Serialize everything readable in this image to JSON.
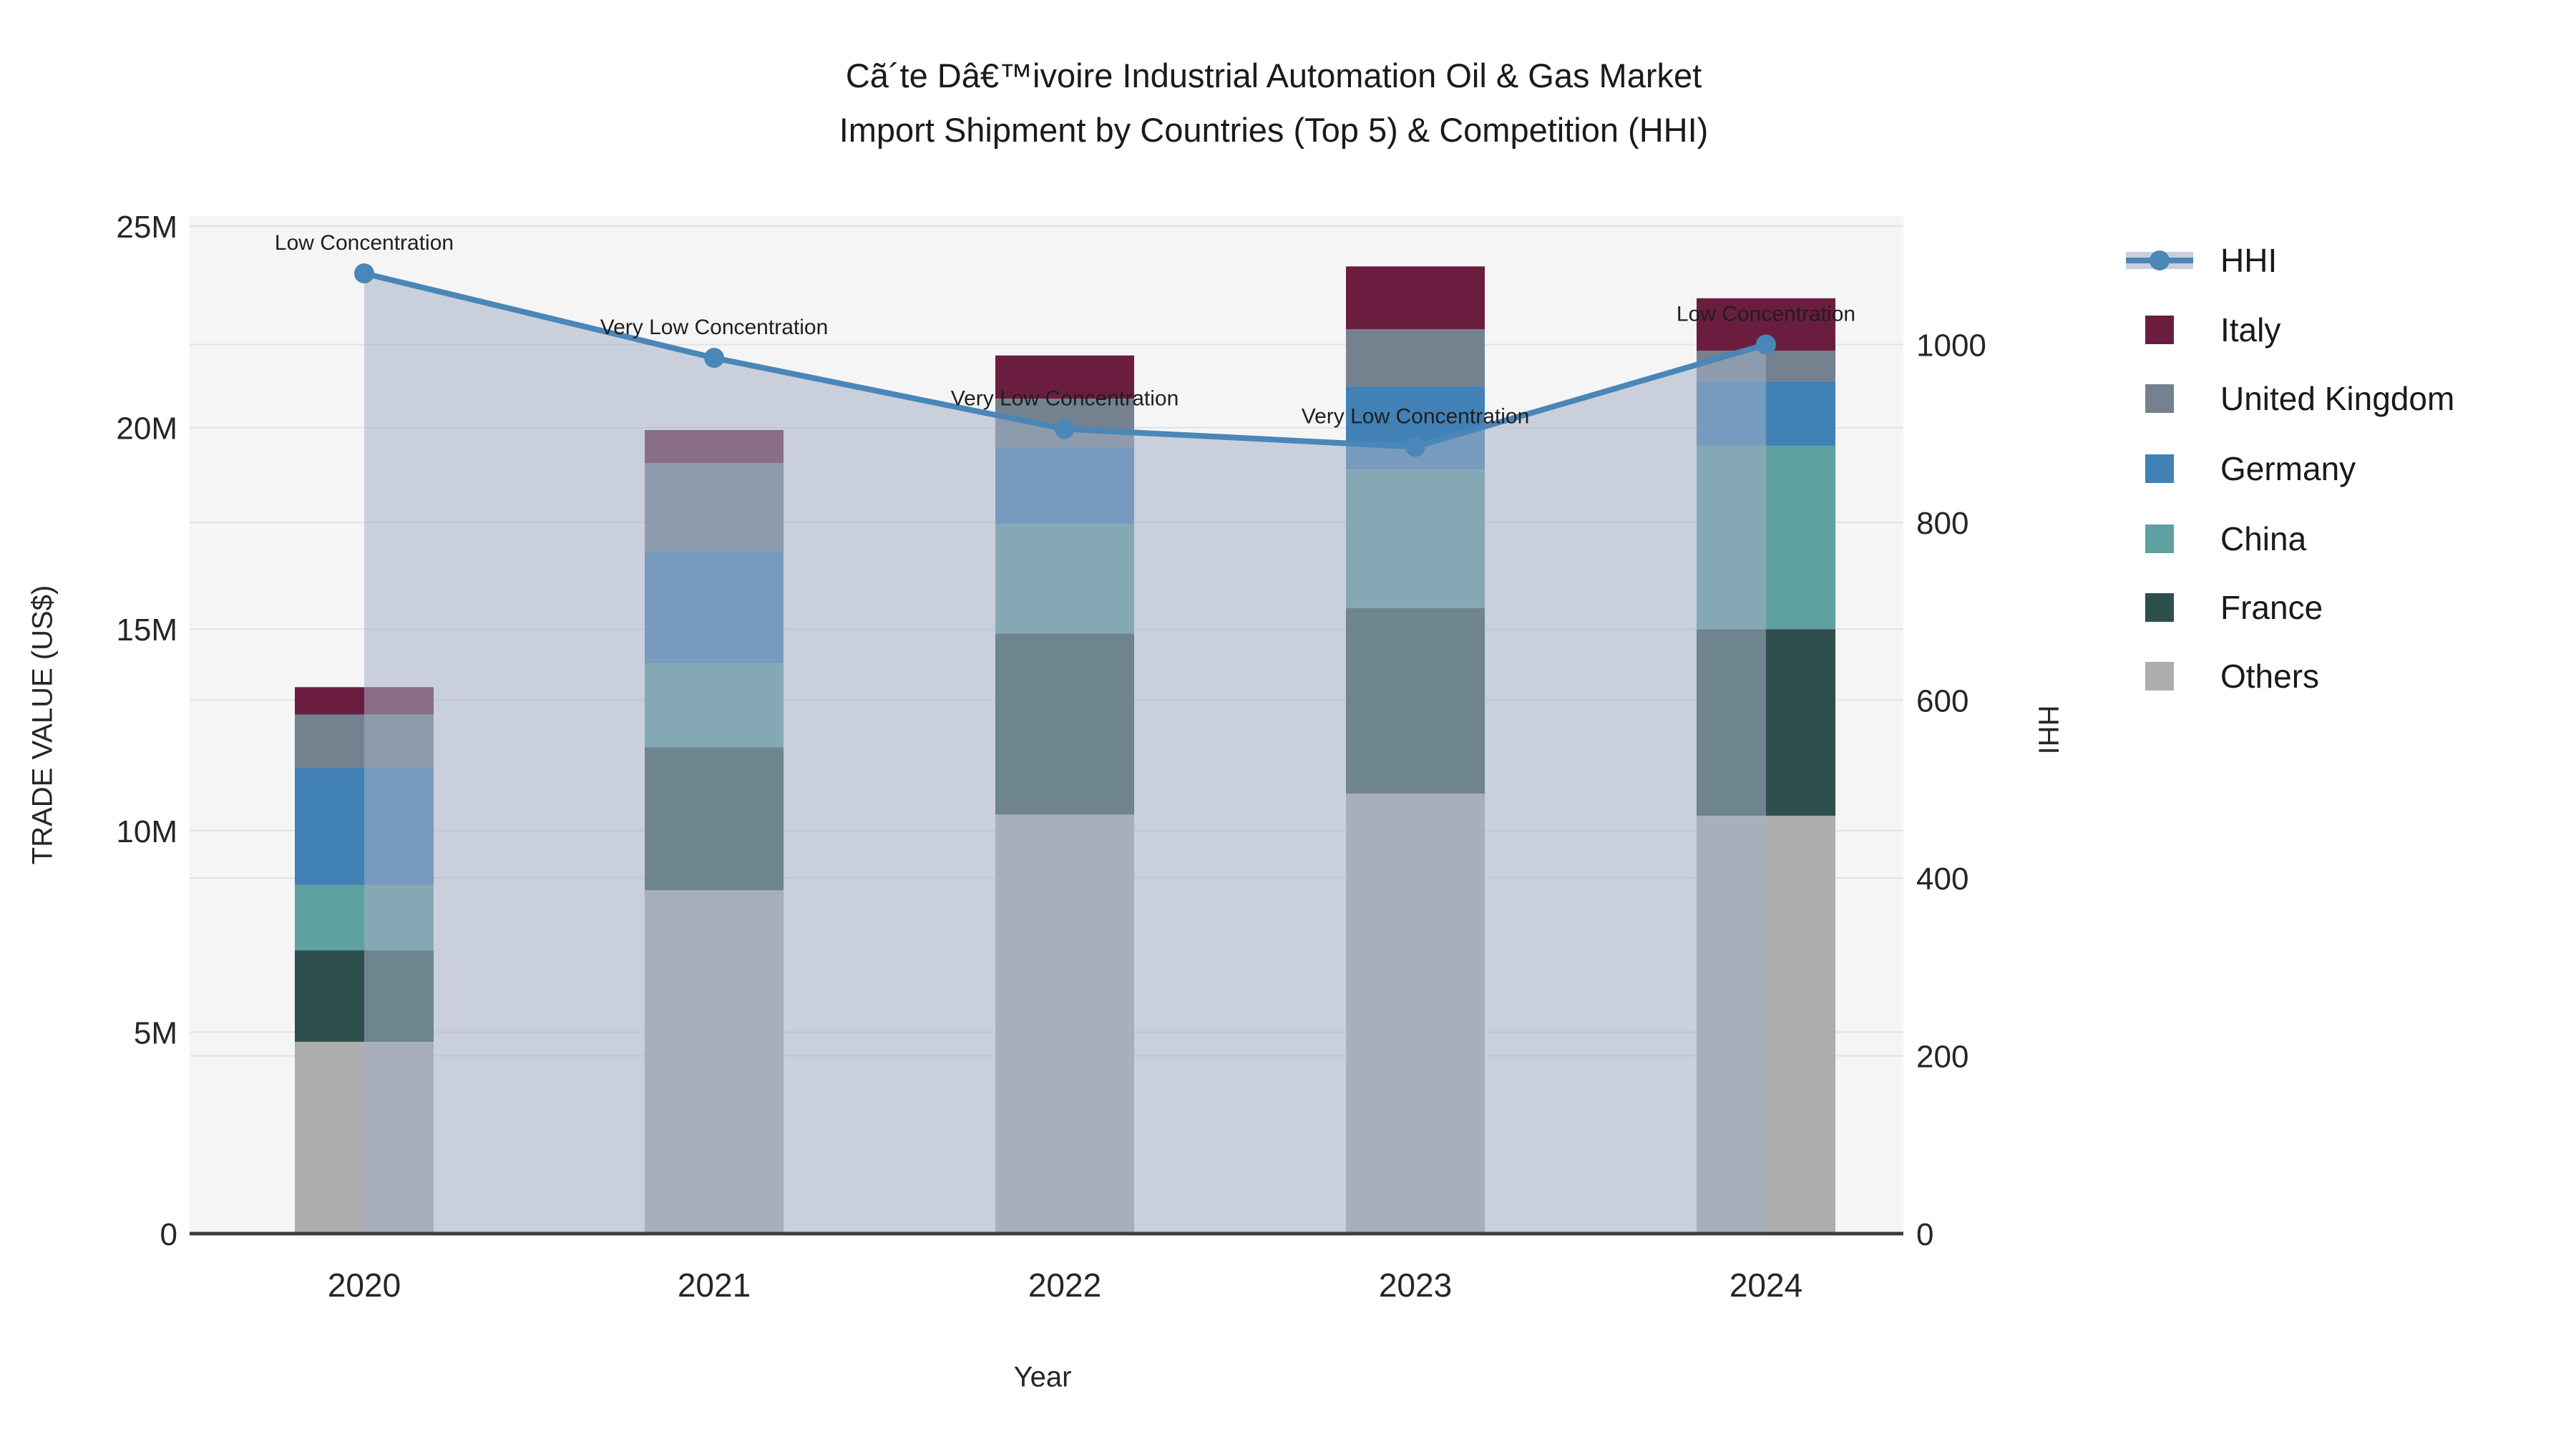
{
  "header": {
    "title_line1": "Cã´te Dâ€™ivoire Industrial Automation Oil & Gas Market",
    "title_line2": "Import Shipment by Countries (Top 5) & Competition (HHI)"
  },
  "chart_data": {
    "type": "bar+line",
    "title": "Cã´te Dâ€™ivoire Industrial Automation Oil & Gas Market Import Shipment by Countries (Top 5) & Competition (HHI)",
    "xlabel": "Year",
    "ylabel": "TRADE VALUE (US$)",
    "y2label": "HHI",
    "categories": [
      "2020",
      "2021",
      "2022",
      "2023",
      "2024"
    ],
    "bar_unit": "US$ millions",
    "bar_stack_order_bottom_to_top": [
      "Others",
      "France",
      "China",
      "Germany",
      "United Kingdom",
      "Italy"
    ],
    "bar_series": [
      {
        "name": "Others",
        "color": "#adadad",
        "values": [
          4.76,
          8.52,
          10.4,
          10.92,
          10.37
        ]
      },
      {
        "name": "France",
        "color": "#2e4f4e",
        "values": [
          2.27,
          3.55,
          4.49,
          4.6,
          4.63
        ]
      },
      {
        "name": "China",
        "color": "#5fa0a0",
        "values": [
          1.62,
          2.08,
          2.72,
          3.44,
          4.55
        ]
      },
      {
        "name": "Germany",
        "color": "#4181b5",
        "values": [
          2.9,
          2.77,
          1.9,
          2.06,
          1.6
        ]
      },
      {
        "name": "United Kingdom",
        "color": "#74818f",
        "values": [
          1.33,
          2.2,
          1.21,
          1.42,
          0.76
        ]
      },
      {
        "name": "Italy",
        "color": "#6b1d3f",
        "values": [
          0.68,
          0.82,
          1.07,
          1.56,
          1.3
        ]
      }
    ],
    "bar_totals": [
      13.56,
      19.94,
      21.79,
      24.0,
      23.21
    ],
    "line_series": {
      "name": "HHI",
      "values": [
        1080,
        985,
        905,
        885,
        1000
      ],
      "color": "#4a86b8",
      "area_fill": "rgba(164,176,197,0.55)"
    },
    "annotations": [
      {
        "category": "2020",
        "text": "Low Concentration"
      },
      {
        "category": "2021",
        "text": "Very Low Concentration"
      },
      {
        "category": "2022",
        "text": "Very Low Concentration"
      },
      {
        "category": "2023",
        "text": "Very Low Concentration"
      },
      {
        "category": "2024",
        "text": "Low Concentration"
      }
    ],
    "ylim": [
      0,
      25000000
    ],
    "yticks": [
      "0",
      "5M",
      "10M",
      "15M",
      "20M",
      "25M"
    ],
    "ytick_values_m": [
      0,
      5,
      10,
      15,
      20,
      25
    ],
    "y2ticks": [
      "0",
      "200",
      "400",
      "600",
      "800",
      "1000"
    ],
    "y2tick_values": [
      0,
      200,
      400,
      600,
      800,
      1000
    ],
    "grid": true,
    "legend_position": "right",
    "legend": {
      "items": [
        {
          "label": "HHI",
          "type": "line",
          "color": "#4a86b8"
        },
        {
          "label": "Italy",
          "type": "swatch",
          "color": "#6b1d3f"
        },
        {
          "label": "United Kingdom",
          "type": "swatch",
          "color": "#74818f"
        },
        {
          "label": "Germany",
          "type": "swatch",
          "color": "#4181b5"
        },
        {
          "label": "China",
          "type": "swatch",
          "color": "#5fa0a0"
        },
        {
          "label": "France",
          "type": "swatch",
          "color": "#2e4f4e"
        },
        {
          "label": "Others",
          "type": "swatch",
          "color": "#adadad"
        }
      ]
    },
    "colors": {
      "plot_bg": "#f5f5f5",
      "grid": "#e2e2e2",
      "axis_line": "#3c3c3c",
      "tick_text": "#262626",
      "annotation_text": "#1f1f1f"
    }
  }
}
